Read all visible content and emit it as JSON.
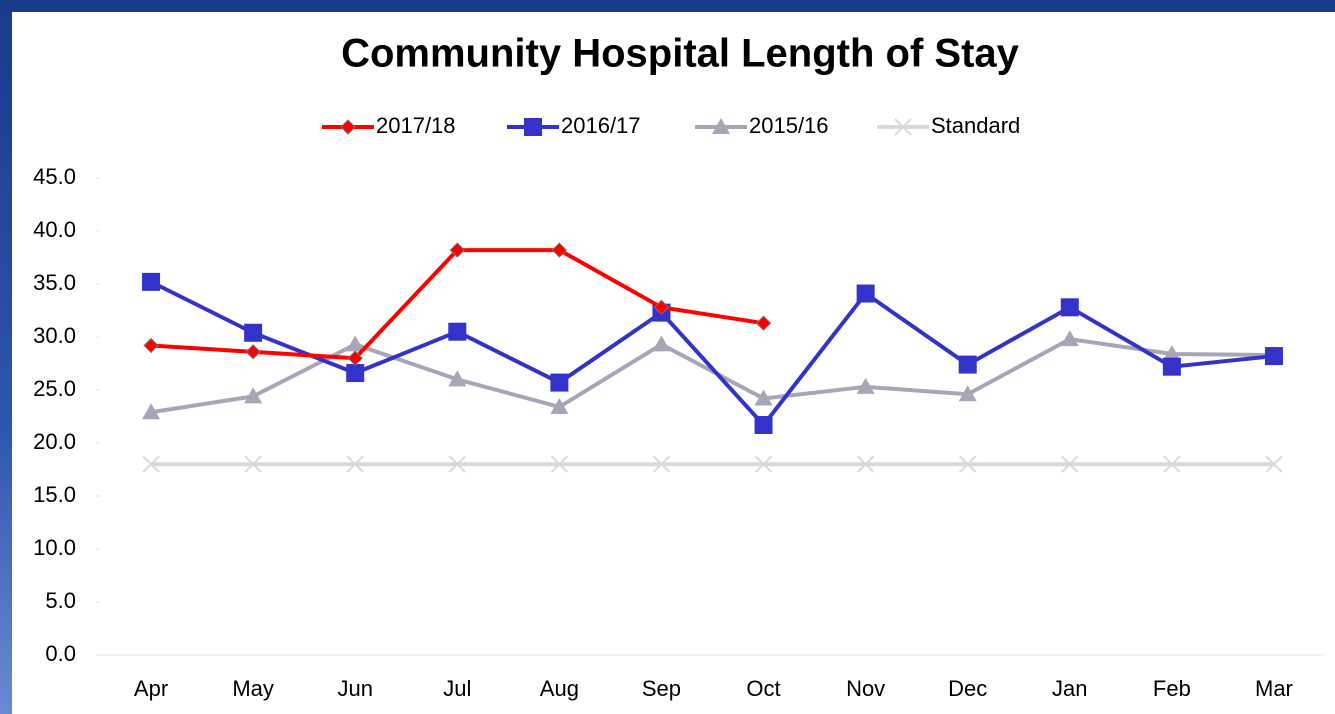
{
  "chart_data": {
    "type": "line",
    "title": "Community Hospital Length of Stay",
    "categories": [
      "Apr",
      "May",
      "Jun",
      "Jul",
      "Aug",
      "Sep",
      "Oct",
      "Nov",
      "Dec",
      "Jan",
      "Feb",
      "Mar"
    ],
    "series": [
      {
        "name": "2017/18",
        "color": "#ff0000",
        "marker": "diamond",
        "values": [
          29.2,
          28.6,
          28.0,
          38.2,
          38.2,
          32.8,
          31.3,
          null,
          null,
          null,
          null,
          null
        ]
      },
      {
        "name": "2016/17",
        "color": "#3333cc",
        "marker": "square",
        "values": [
          35.2,
          30.4,
          26.6,
          30.5,
          25.7,
          32.3,
          21.7,
          34.1,
          27.4,
          32.8,
          27.2,
          28.2
        ]
      },
      {
        "name": "2015/16",
        "color": "#a6a6b8",
        "marker": "triangle",
        "values": [
          22.9,
          24.4,
          29.3,
          26.0,
          23.4,
          29.3,
          24.2,
          25.3,
          24.6,
          29.8,
          28.4,
          28.3
        ]
      },
      {
        "name": "Standard",
        "color": "#d9d9d9",
        "marker": "x",
        "values": [
          18.0,
          18.0,
          18.0,
          18.0,
          18.0,
          18.0,
          18.0,
          18.0,
          18.0,
          18.0,
          18.0,
          18.0
        ]
      }
    ],
    "ylim": [
      0,
      45
    ],
    "yticks": [
      {
        "value": 0,
        "label": "0.0"
      },
      {
        "value": 5,
        "label": "5.0"
      },
      {
        "value": 10,
        "label": "10.0"
      },
      {
        "value": 15,
        "label": "15.0"
      },
      {
        "value": 20,
        "label": "20.0"
      },
      {
        "value": 25,
        "label": "25.0"
      },
      {
        "value": 30,
        "label": "30.0"
      },
      {
        "value": 35,
        "label": "35.0"
      },
      {
        "value": 40,
        "label": "40.0"
      },
      {
        "value": 45,
        "label": "45.0"
      }
    ],
    "legend": "top"
  }
}
